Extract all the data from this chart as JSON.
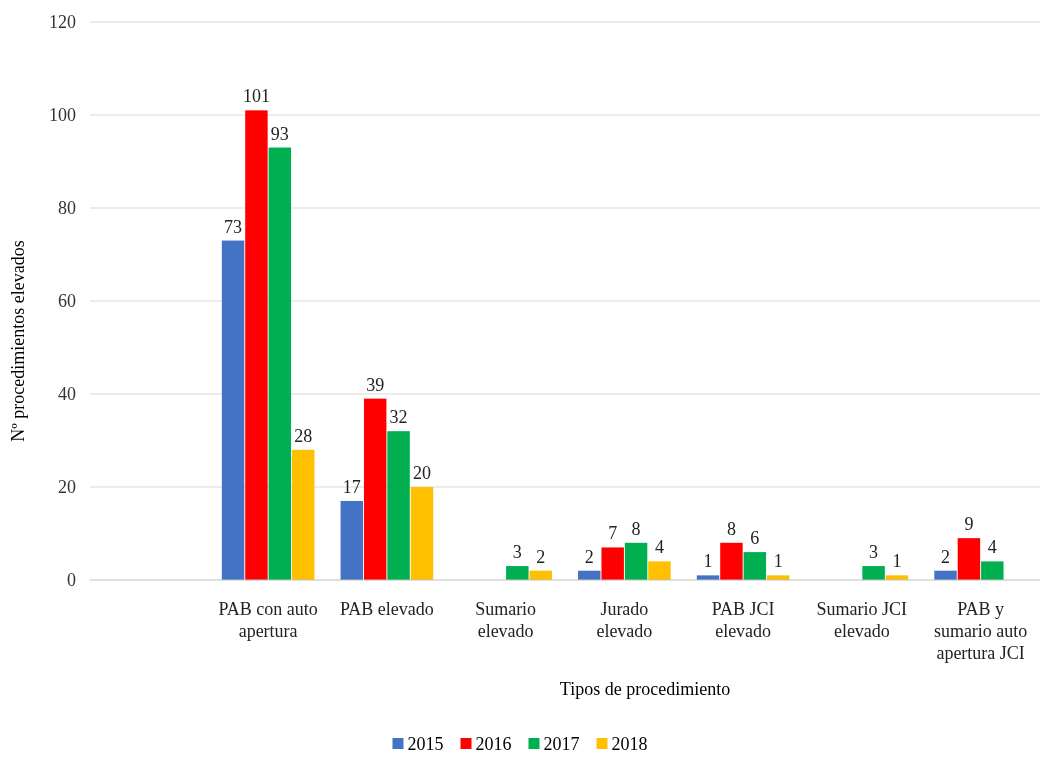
{
  "chart_data": {
    "type": "bar",
    "xlabel": "Tipos de procedimiento",
    "ylabel": "Nº procedimientos elevados",
    "categories": [
      null,
      "PAB con auto apertura",
      "PAB elevado",
      "Sumario elevado",
      "Jurado elevado",
      "PAB JCI elevado",
      "Sumario JCI elevado",
      "PAB y sumario auto apertura JCI"
    ],
    "series": [
      {
        "name": "2015",
        "color": "#4472c4",
        "values": [
          null,
          73,
          17,
          null,
          2,
          1,
          null,
          2
        ]
      },
      {
        "name": "2016",
        "color": "#ff0000",
        "values": [
          null,
          101,
          39,
          null,
          7,
          8,
          null,
          9
        ]
      },
      {
        "name": "2017",
        "color": "#00b050",
        "values": [
          null,
          93,
          32,
          3,
          8,
          6,
          3,
          4
        ]
      },
      {
        "name": "2018",
        "color": "#ffc000",
        "values": [
          null,
          28,
          20,
          2,
          4,
          1,
          1,
          null
        ]
      }
    ],
    "ylim": [
      0,
      120
    ],
    "yticks": [
      0,
      20,
      40,
      60,
      80,
      100,
      120
    ],
    "grid": "y",
    "legend": "bottom",
    "data_labels": true
  }
}
